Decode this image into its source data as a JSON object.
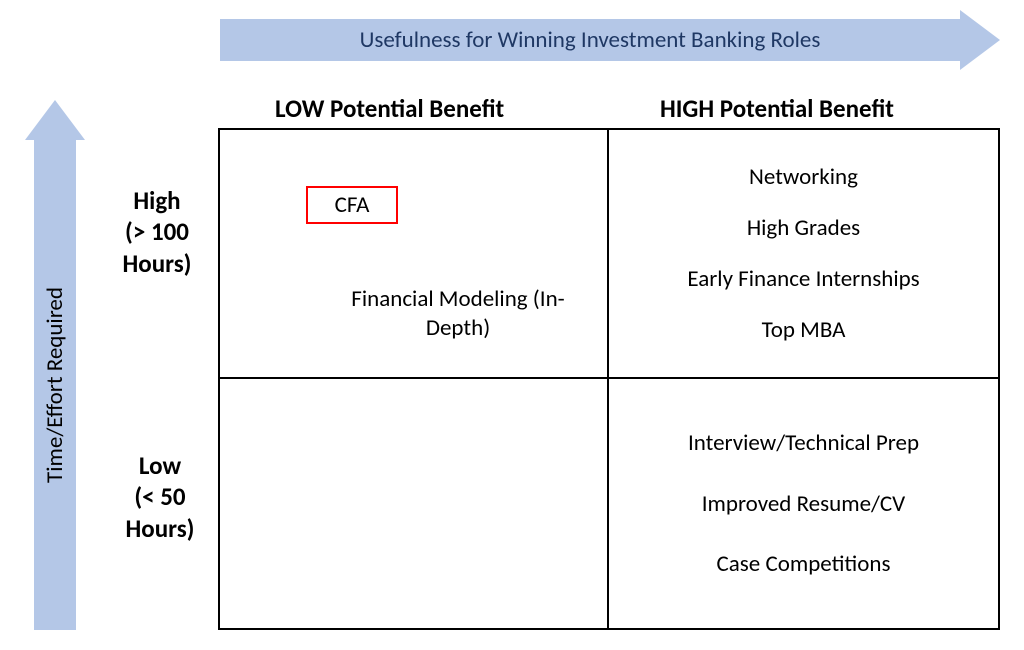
{
  "diagram": {
    "type": "2x2-matrix",
    "background_color": "#ffffff",
    "border_color": "#000000",
    "arrow_fill": "#b4c7e7",
    "top_arrow_text_color": "#1f3864",
    "left_arrow_text_color": "#000000",
    "text_color": "#000000",
    "highlight_border_color": "#ff0000",
    "font_family": "Calibri",
    "header_fontsize": 25,
    "item_fontsize": 23,
    "axis_label_fontsize": 23
  },
  "axes": {
    "x_label": "Usefulness for Winning Investment Banking Roles",
    "y_label": "Time/Effort Required"
  },
  "columns": {
    "low": "LOW Potential Benefit",
    "high": "HIGH Potential Benefit"
  },
  "rows": {
    "high": "High\n(> 100 Hours)",
    "low": "Low\n(< 50 Hours)"
  },
  "cells": {
    "high_effort_low_benefit": {
      "highlighted": "CFA",
      "items": [
        "Financial Modeling (In-Depth)"
      ]
    },
    "high_effort_high_benefit": {
      "items": [
        "Networking",
        "High Grades",
        "Early Finance Internships",
        "Top MBA"
      ]
    },
    "low_effort_low_benefit": {
      "items": []
    },
    "low_effort_high_benefit": {
      "items": [
        "Interview/Technical Prep",
        "Improved Resume/CV",
        "Case Competitions"
      ]
    }
  }
}
